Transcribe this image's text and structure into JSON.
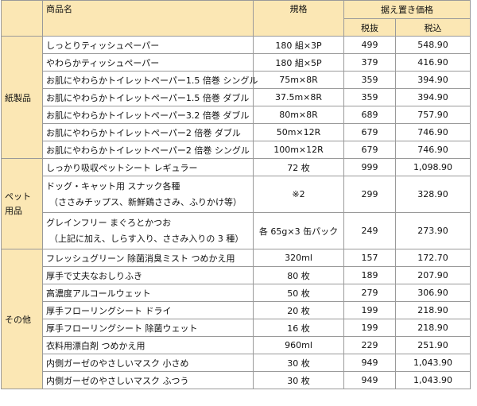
{
  "header": {
    "name": "商品名",
    "spec": "規格",
    "price": "据え置き価格",
    "excl": "税抜",
    "incl": "税込"
  },
  "groups": [
    {
      "category": "紙製品",
      "rows": [
        {
          "name": "しっとりティッシュペーパー",
          "spec": "180 組×3P",
          "excl": "499",
          "incl": "548.90"
        },
        {
          "name": "やわらかティッシュペーパー",
          "spec": "180 組×5P",
          "excl": "379",
          "incl": "416.90"
        },
        {
          "name": "お肌にやわらかトイレットペーパー1.5 倍巻 シングル",
          "spec": "75m×8R",
          "excl": "359",
          "incl": "394.90"
        },
        {
          "name": "お肌にやわらかトイレットペーパー1.5 倍巻 ダブル",
          "spec": "37.5m×8R",
          "excl": "359",
          "incl": "394.90"
        },
        {
          "name": "お肌にやわらかトイレットペーパー3.2 倍巻 ダブル",
          "spec": "80m×8R",
          "excl": "689",
          "incl": "757.90"
        },
        {
          "name": "お肌にやわらかトイレットペーパー2 倍巻 ダブル",
          "spec": "50m×12R",
          "excl": "679",
          "incl": "746.90"
        },
        {
          "name": "お肌にやわらかトイレットペーパー2 倍巻 シングル",
          "spec": "100m×12R",
          "excl": "679",
          "incl": "746.90"
        }
      ]
    },
    {
      "category_line1": "ペット",
      "category_line2": "用品",
      "rows": [
        {
          "name": "しっかり吸収ペットシート レギュラー",
          "spec": "72 枚",
          "excl": "999",
          "incl": "1,098.90"
        },
        {
          "name": "ドッグ・キャット用 スナック各種",
          "name2": "（ささみチップス、新鮮鶏ささみ、ふりかけ等）",
          "spec": "※2",
          "excl": "299",
          "incl": "328.90"
        },
        {
          "name": "グレインフリー まぐろとかつお",
          "name2": "（上記に加え、しらす入り、ささみ入りの 3 種）",
          "spec": "各 65g×3 缶パック",
          "excl": "249",
          "incl": "273.90"
        }
      ]
    },
    {
      "category": "その他",
      "rows": [
        {
          "name": "フレッシュグリーン 除菌消臭ミスト つめかえ用",
          "spec": "320ml",
          "excl": "157",
          "incl": "172.70"
        },
        {
          "name": "厚手で丈夫なおしりふき",
          "spec": "80 枚",
          "excl": "189",
          "incl": "207.90"
        },
        {
          "name": "高濃度アルコールウェット",
          "spec": "50 枚",
          "excl": "279",
          "incl": "306.90"
        },
        {
          "name": "厚手フローリングシート ドライ",
          "spec": "20 枚",
          "excl": "199",
          "incl": "218.90"
        },
        {
          "name": "厚手フローリングシート 除菌ウェット",
          "spec": "16 枚",
          "excl": "199",
          "incl": "218.90"
        },
        {
          "name": "衣料用漂白剤 つめかえ用",
          "spec": "960ml",
          "excl": "229",
          "incl": "251.90"
        },
        {
          "name": "内側ガーゼのやさしいマスク 小さめ",
          "spec": "30 枚",
          "excl": "949",
          "incl": "1,043.90"
        },
        {
          "name": "内側ガーゼのやさしいマスク ふつう",
          "spec": "30 枚",
          "excl": "949",
          "incl": "1,043.90"
        }
      ]
    }
  ]
}
